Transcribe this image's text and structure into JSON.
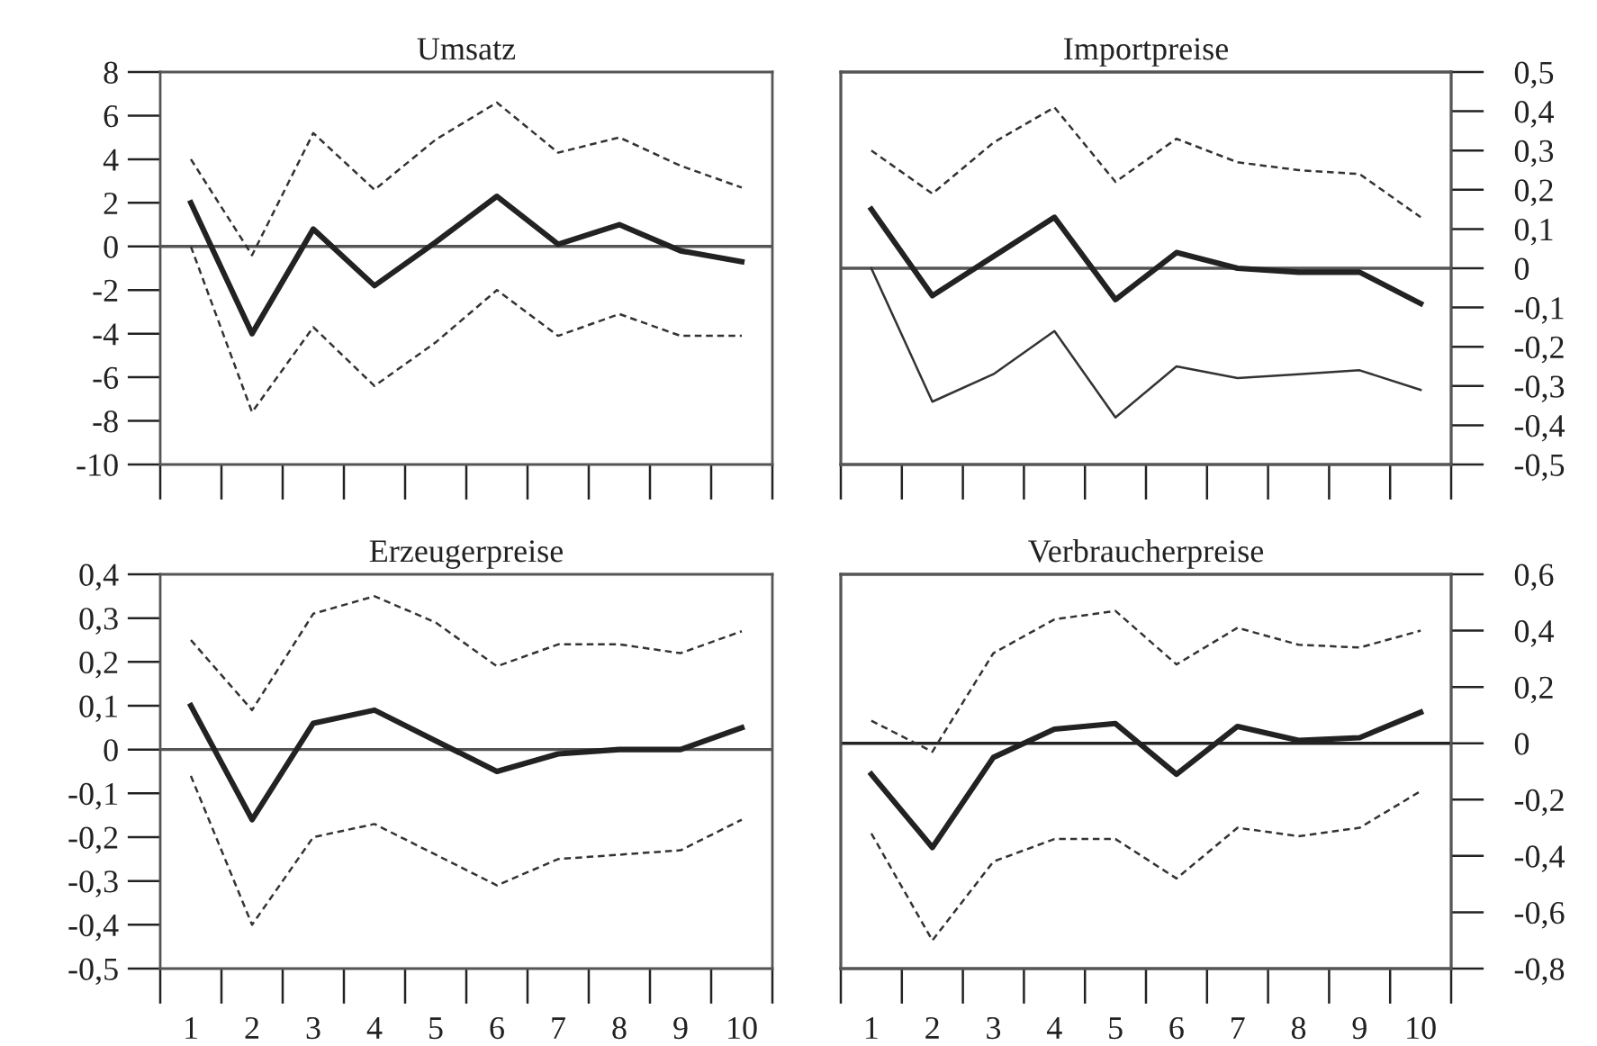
{
  "chart_data": [
    {
      "type": "line",
      "title": "Umsatz",
      "categories": [
        "1",
        "2",
        "3",
        "4",
        "5",
        "6",
        "7",
        "8",
        "9",
        "10"
      ],
      "tick_labels": "y",
      "ylim": [
        -10,
        8
      ],
      "yticks": [
        -10,
        -8,
        -6,
        -4,
        -2,
        0,
        2,
        4,
        6,
        8
      ],
      "series": [
        {
          "color": "#222222",
          "line_style": "solid",
          "values": [
            2,
            -4,
            0.8,
            -1.8,
            0.2,
            2.3,
            0.1,
            1,
            -0.2,
            -0.7
          ]
        },
        {
          "color": "#333333",
          "line_style": "dashed",
          "values": [
            4,
            -0.4,
            5.2,
            2.6,
            4.9,
            6.6,
            4.3,
            5,
            3.7,
            2.7
          ]
        },
        {
          "color": "#333333",
          "line_style": "dashed",
          "values": [
            0,
            -7.6,
            -3.7,
            -6.4,
            -4.4,
            -2,
            -4.1,
            -3.1,
            -4.1,
            -4.1
          ]
        }
      ],
      "ref_lines": [
        {
          "axis": "y",
          "value": 0,
          "color": "#555555"
        }
      ]
    },
    {
      "type": "line",
      "title": "Importpreise",
      "categories": [
        "1",
        "2",
        "3",
        "4",
        "5",
        "6",
        "7",
        "8",
        "9",
        "10"
      ],
      "tick_labels": "y",
      "y2lim": [
        -0.5,
        0.5
      ],
      "y2ticks": [
        {
          "value": -0.5,
          "label": "-0,5"
        },
        {
          "value": -0.4,
          "label": "-0,4"
        },
        {
          "value": -0.3,
          "label": "-0,3"
        },
        {
          "value": -0.2,
          "label": "-0,2"
        },
        {
          "value": -0.1,
          "label": "-0,1"
        },
        0,
        {
          "value": 0.1,
          "label": "0,1"
        },
        {
          "value": 0.2,
          "label": "0,2"
        },
        {
          "value": 0.3,
          "label": "0,3"
        },
        {
          "value": 0.4,
          "label": "0,4"
        },
        {
          "value": 0.5,
          "label": "0,5"
        }
      ],
      "series": [
        {
          "color": "#222222",
          "line_style": "solid",
          "axis": "y2",
          "values": [
            0.15,
            -0.07,
            0.03,
            0.13,
            -0.08,
            0.04,
            0,
            -0.01,
            -0.01,
            -0.09
          ]
        },
        {
          "color": "#333333",
          "line_style": "dashed",
          "axis": "y2",
          "values": [
            0.3,
            0.19,
            0.32,
            0.41,
            0.22,
            0.33,
            0.27,
            0.25,
            0.24,
            0.13
          ]
        },
        {
          "color": "#333333",
          "line_style": "solid",
          "axis": "y2",
          "values": [
            0,
            -0.34,
            -0.27,
            -0.16,
            -0.38,
            -0.25,
            -0.28,
            -0.27,
            -0.26,
            -0.31
          ]
        }
      ],
      "ref_lines": [
        {
          "axis": "y2",
          "value": 0,
          "color": "#555555"
        }
      ]
    },
    {
      "type": "line",
      "title": "Erzeugerpreise",
      "categories": [
        "1",
        "2",
        "3",
        "4",
        "5",
        "6",
        "7",
        "8",
        "9",
        "10"
      ],
      "ylim": [
        -0.5,
        0.4
      ],
      "yticks": [
        {
          "value": -0.5,
          "label": "-0,5"
        },
        {
          "value": -0.4,
          "label": "-0,4"
        },
        {
          "value": -0.3,
          "label": "-0,3"
        },
        {
          "value": -0.2,
          "label": "-0,2"
        },
        {
          "value": -0.1,
          "label": "-0,1"
        },
        0,
        {
          "value": 0.1,
          "label": "0,1"
        },
        {
          "value": 0.2,
          "label": "0,2"
        },
        {
          "value": 0.3,
          "label": "0,3"
        },
        {
          "value": 0.4,
          "label": "0,4"
        }
      ],
      "series": [
        {
          "color": "#222222",
          "line_style": "solid",
          "values": [
            0.1,
            -0.16,
            0.06,
            0.09,
            0.02,
            -0.05,
            -0.01,
            0,
            0,
            0.05
          ]
        },
        {
          "color": "#333333",
          "line_style": "dashed",
          "values": [
            0.25,
            0.09,
            0.31,
            0.35,
            0.29,
            0.19,
            0.24,
            0.24,
            0.22,
            0.27
          ]
        },
        {
          "color": "#333333",
          "line_style": "dashed",
          "values": [
            -0.06,
            -0.4,
            -0.2,
            -0.17,
            -0.24,
            -0.31,
            -0.25,
            -0.24,
            -0.23,
            -0.16
          ]
        }
      ],
      "ref_lines": [
        {
          "axis": "y",
          "value": 0,
          "color": "#555555"
        }
      ]
    },
    {
      "type": "line",
      "title": "Verbraucherpreise",
      "categories": [
        "1",
        "2",
        "3",
        "4",
        "5",
        "6",
        "7",
        "8",
        "9",
        "10"
      ],
      "y2lim": [
        -0.8,
        0.6
      ],
      "y2ticks": [
        {
          "value": -0.8,
          "label": "-0,8"
        },
        {
          "value": -0.6,
          "label": "-0,6"
        },
        {
          "value": -0.4,
          "label": "-0,4"
        },
        {
          "value": -0.2,
          "label": "-0,2"
        },
        0,
        {
          "value": 0.2,
          "label": "0,2"
        },
        {
          "value": 0.4,
          "label": "0,4"
        },
        {
          "value": 0.6,
          "label": "0,6"
        }
      ],
      "series": [
        {
          "color": "#222222",
          "line_style": "solid",
          "axis": "y2",
          "values": [
            -0.11,
            -0.37,
            -0.05,
            0.05,
            0.07,
            -0.11,
            0.06,
            0.01,
            0.02,
            0.11
          ]
        },
        {
          "color": "#333333",
          "line_style": "dashed",
          "axis": "y2",
          "values": [
            0.08,
            -0.03,
            0.32,
            0.44,
            0.47,
            0.28,
            0.41,
            0.35,
            0.34,
            0.4
          ]
        },
        {
          "color": "#333333",
          "line_style": "dashed",
          "axis": "y2",
          "values": [
            -0.32,
            -0.7,
            -0.42,
            -0.34,
            -0.34,
            -0.48,
            -0.3,
            -0.33,
            -0.3,
            -0.17
          ]
        }
      ],
      "ref_lines": [
        {
          "axis": "y2",
          "value": 0,
          "color": "#222222"
        }
      ]
    }
  ]
}
